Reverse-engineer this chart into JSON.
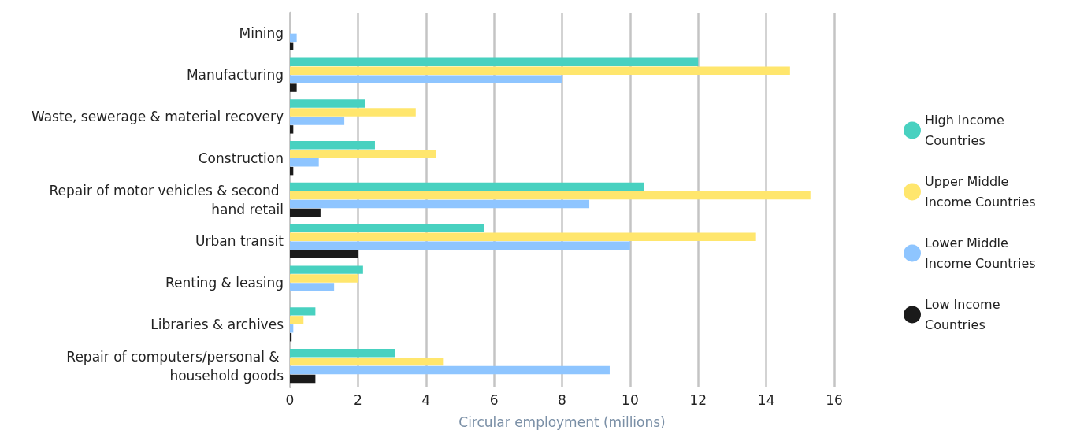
{
  "chart_data": {
    "type": "bar",
    "orientation": "horizontal",
    "xlabel": "Circular employment (millions)",
    "categories": [
      "Mining",
      "Manufacturing",
      "Waste, sewerage & material recovery",
      "Construction",
      "Repair of motor vehicles & second hand retail",
      "Urban transit",
      "Renting & leasing",
      "Libraries & archives",
      "Repair of computers/personal & household goods"
    ],
    "series": [
      {
        "name": "High Income Countries",
        "color": "#48d1c0",
        "values": [
          0,
          12,
          2.2,
          2.5,
          10.4,
          5.7,
          2.15,
          0.75,
          3.1
        ]
      },
      {
        "name": "Upper Middle Income Countries",
        "color": "#ffe66d",
        "values": [
          0,
          14.7,
          3.7,
          4.3,
          15.3,
          13.7,
          2,
          0.4,
          4.5
        ]
      },
      {
        "name": "Lower Middle Income Countries",
        "color": "#8ec5ff",
        "values": [
          0.2,
          8,
          1.6,
          0.85,
          8.8,
          10,
          1.3,
          0.1,
          9.4
        ]
      },
      {
        "name": "Low Income Countries",
        "color": "#1a1a1a",
        "values": [
          0.1,
          0.2,
          0.1,
          0.1,
          0.9,
          2,
          0,
          0.05,
          0.75
        ]
      }
    ],
    "xlim": [
      0,
      16
    ],
    "xticks": [
      0,
      2,
      4,
      6,
      8,
      10,
      12,
      14,
      16
    ],
    "grid": "x",
    "legend": "right"
  }
}
